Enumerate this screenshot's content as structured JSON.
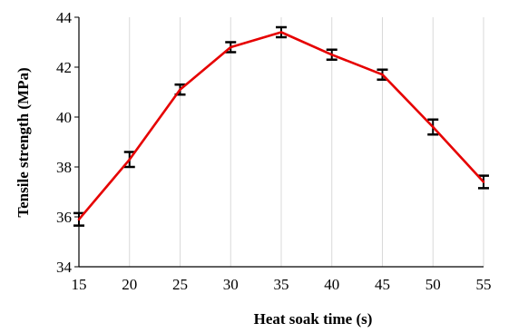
{
  "chart_data": {
    "type": "line",
    "xlabel": "Heat soak time (s)",
    "ylabel": "Tensile strength (MPa)",
    "xlim": [
      15,
      55
    ],
    "ylim": [
      34,
      44
    ],
    "x_ticks": [
      "15",
      "20",
      "25",
      "30",
      "35",
      "40",
      "45",
      "50",
      "55"
    ],
    "y_ticks": [
      "34",
      "36",
      "38",
      "40",
      "42",
      "44"
    ],
    "grid": "vertical gridlines on",
    "legend": "none",
    "series": [
      {
        "color": "#e60000",
        "x": [
          15,
          20,
          25,
          30,
          35,
          40,
          45,
          50,
          55
        ],
        "y": [
          35.9,
          38.3,
          41.1,
          42.8,
          43.4,
          42.5,
          41.7,
          39.6,
          37.4
        ],
        "error": [
          0.25,
          0.3,
          0.2,
          0.2,
          0.2,
          0.2,
          0.2,
          0.3,
          0.25
        ]
      }
    ]
  }
}
